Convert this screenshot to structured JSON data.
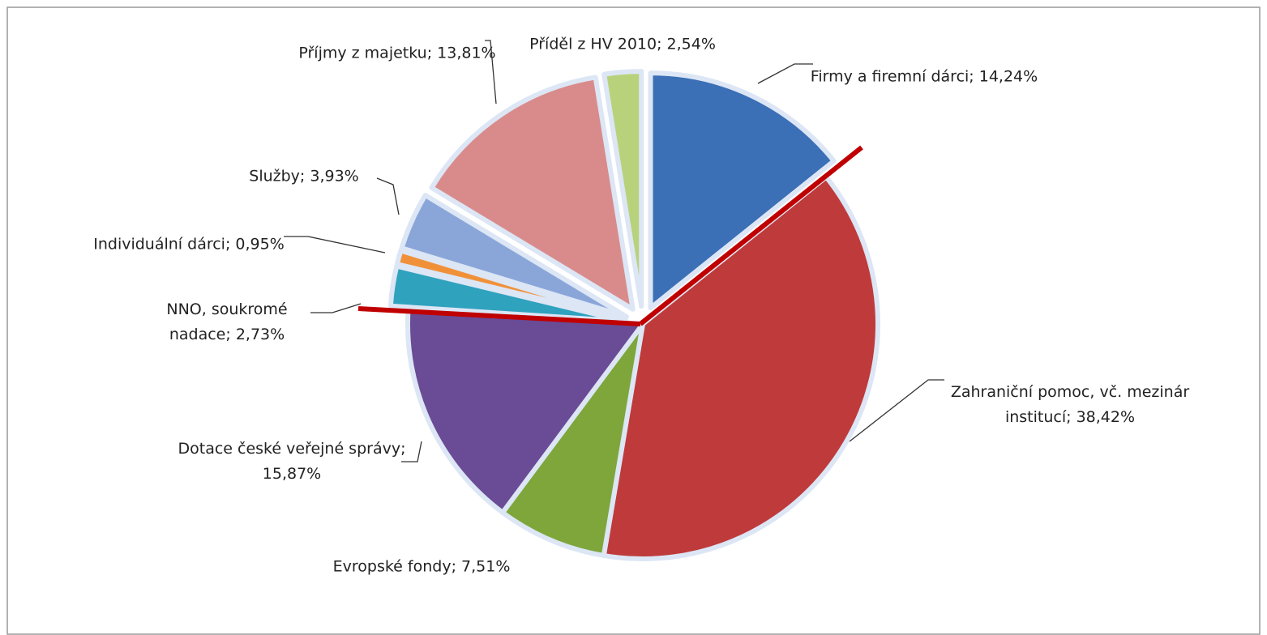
{
  "chart_data": {
    "type": "pie",
    "categories": [
      "Firmy a firemní dárci;",
      "Zahraniční pomoc, vč. mezinár institucí;",
      "Evropské fondy;",
      "Dotace české veřejné správy;",
      "NNO, soukromé nadace;",
      "Individuální dárci;",
      "Služby;",
      "Příjmy z majetku;",
      "Příděl z HV 2010;"
    ],
    "values": [
      14.24,
      38.42,
      7.51,
      15.87,
      2.73,
      0.95,
      3.93,
      13.81,
      2.54
    ],
    "value_labels": [
      "14,24%",
      "38,42%",
      "7,51%",
      "15,87%",
      "2,73%",
      "0,95%",
      "3,93%",
      "13,81%",
      "2,54%"
    ],
    "colors": [
      "#3b6fb6",
      "#bf3a3a",
      "#7ea63b",
      "#6a4b95",
      "#2fa2be",
      "#f0913a",
      "#8aa6d9",
      "#d98b8b",
      "#b8d27c"
    ]
  }
}
